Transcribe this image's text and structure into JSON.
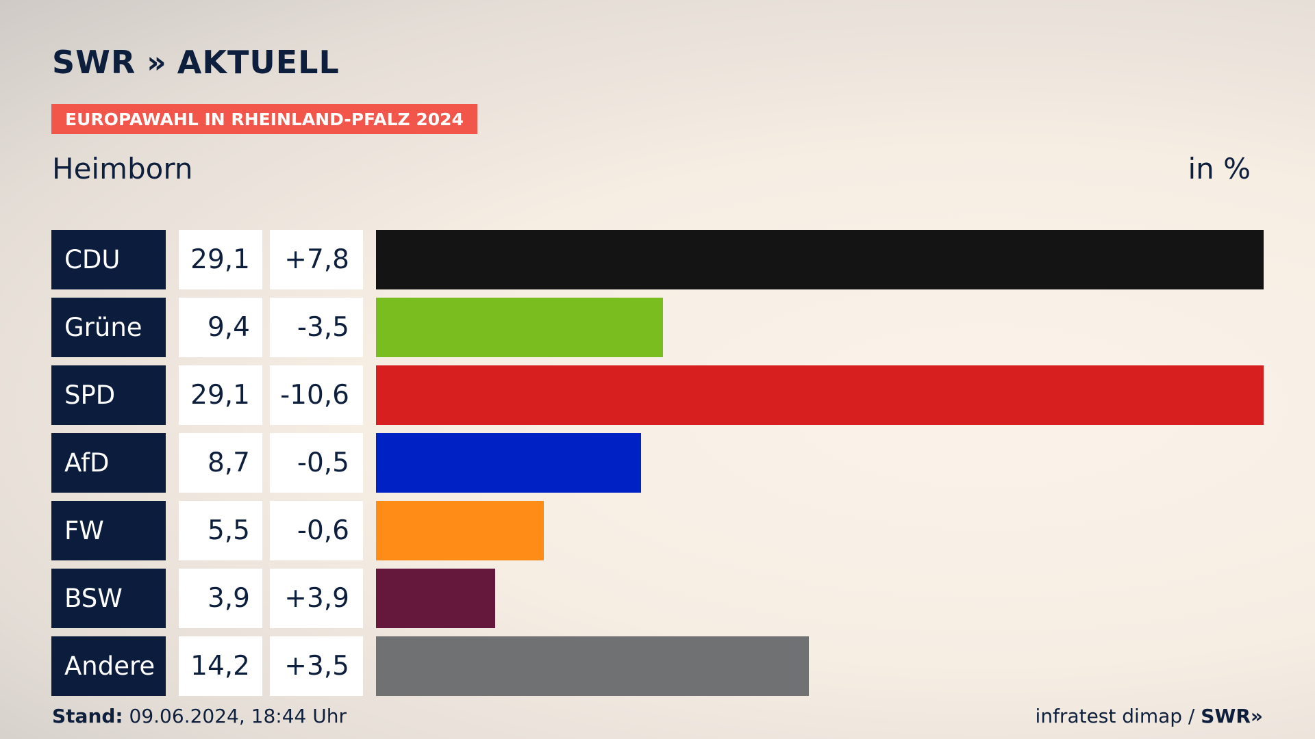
{
  "header": {
    "logo_text": "SWR",
    "logo_chevron": "»",
    "logo_suffix": "AKTUELL",
    "tag": "EUROPAWAHL IN RHEINLAND-PFALZ 2024",
    "location": "Heimborn",
    "unit": "in %"
  },
  "footer": {
    "stand_label": "Stand:",
    "stand_value": "09.06.2024, 18:44 Uhr",
    "source": "infratest dimap /",
    "brand": "SWR",
    "brand_chevron": "»"
  },
  "chart_data": {
    "type": "bar",
    "orientation": "horizontal",
    "categories": [
      "CDU",
      "Grüne",
      "SPD",
      "AfD",
      "FW",
      "BSW",
      "Andere"
    ],
    "values": [
      29.1,
      9.4,
      29.1,
      8.7,
      5.5,
      3.9,
      14.2
    ],
    "value_labels": [
      "29,1",
      "9,4",
      "29,1",
      "8,7",
      "5,5",
      "3,9",
      "14,2"
    ],
    "changes": [
      7.8,
      -3.5,
      -10.6,
      -0.5,
      -0.6,
      3.9,
      3.5
    ],
    "change_labels": [
      "+7,8",
      "-3,5",
      "-10,6",
      "-0,5",
      "-0,6",
      "+3,9",
      "+3,5"
    ],
    "colors": [
      "#141414",
      "#7abd1e",
      "#d81f1f",
      "#0022c4",
      "#ff8c16",
      "#66183c",
      "#707172"
    ],
    "xlim": [
      0,
      29.1
    ],
    "title": "Heimborn",
    "xlabel": "",
    "ylabel": ""
  }
}
